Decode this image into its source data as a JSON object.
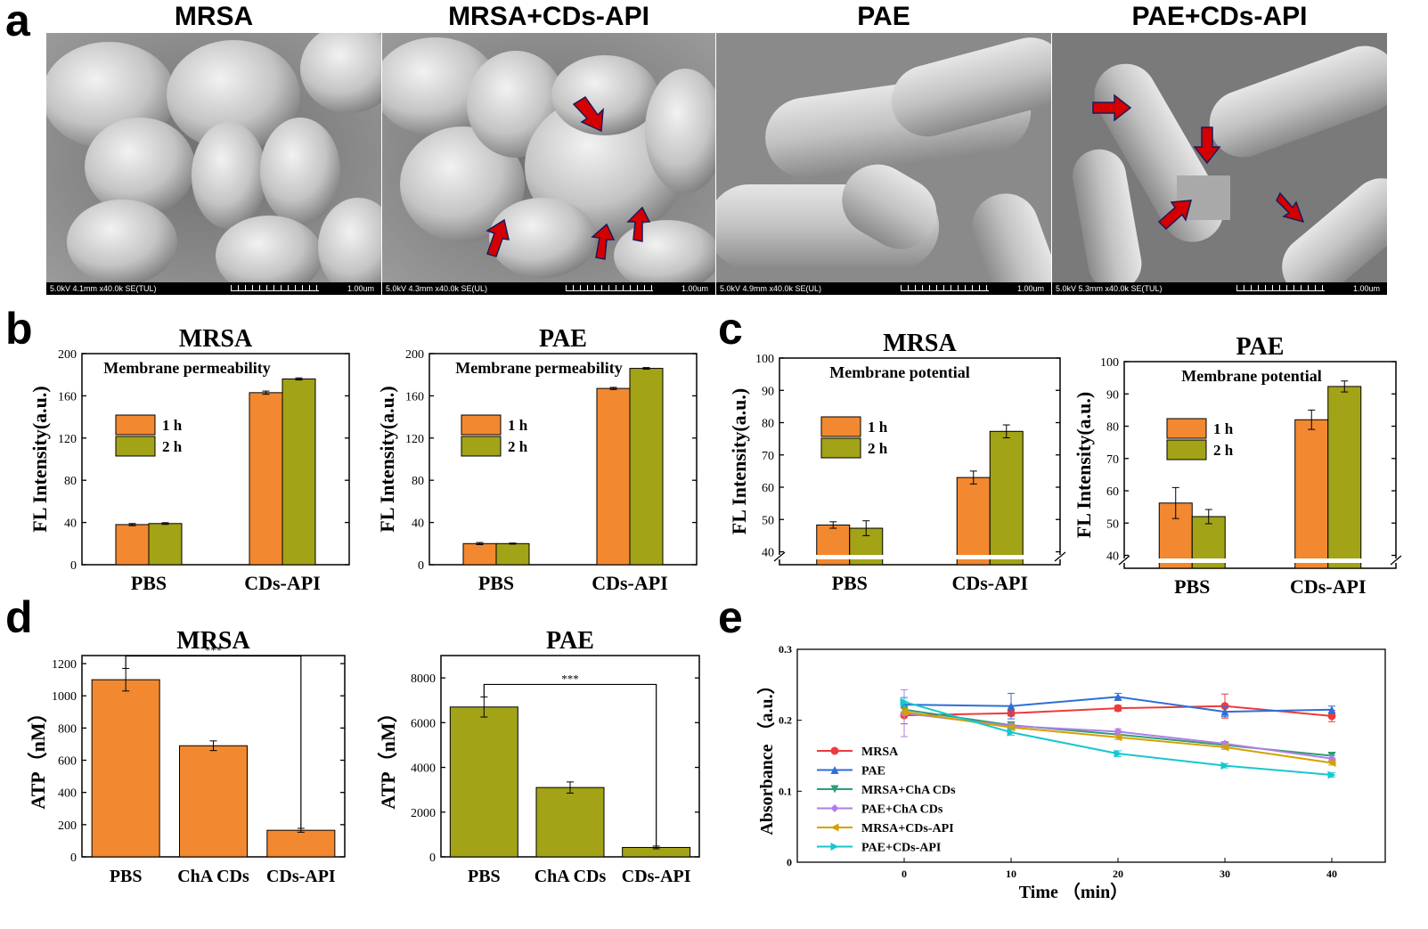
{
  "panel_letters": {
    "a": "a",
    "b": "b",
    "c": "c",
    "d": "d",
    "e": "e"
  },
  "colors": {
    "orange": "#f28830",
    "olive": "#a2a316",
    "red_arrow": "#d40000"
  },
  "sem": [
    {
      "title": "MRSA",
      "info": "5.0kV 4.1mm x40.0k SE(TUL)",
      "scale": "1.00um",
      "content": "cocci"
    },
    {
      "title": "MRSA+CDs-API",
      "info": "5.0kV 4.3mm x40.0k SE(UL)",
      "scale": "1.00um",
      "content": "cocci-damaged"
    },
    {
      "title": "PAE",
      "info": "5.0kV 4.9mm x40.0k SE(UL)",
      "scale": "1.00um",
      "content": "rods"
    },
    {
      "title": "PAE+CDs-API",
      "info": "5.0kV 5.3mm x40.0k SE(TUL)",
      "scale": "1.00um",
      "content": "rods-damaged"
    }
  ],
  "chart_data": [
    {
      "id": "b1",
      "type": "bar",
      "title": "MRSA",
      "annotation": "Membrane permeability",
      "ylabel": "FL Intensity(a.u.)",
      "categories": [
        "PBS",
        "CDs-API"
      ],
      "ylim": [
        0,
        200
      ],
      "yticks": [
        0,
        40,
        80,
        120,
        160,
        200
      ],
      "series": [
        {
          "name": "1 h",
          "color": "#f28830",
          "values": [
            38,
            163
          ],
          "errors": [
            1,
            1.5
          ]
        },
        {
          "name": "2 h",
          "color": "#a2a316",
          "values": [
            39,
            176
          ],
          "errors": [
            0.8,
            1
          ]
        }
      ]
    },
    {
      "id": "b2",
      "type": "bar",
      "title": "PAE",
      "annotation": "Membrane permeability",
      "ylabel": "FL Intensity(a.u.)",
      "categories": [
        "PBS",
        "CDs-API"
      ],
      "ylim": [
        0,
        200
      ],
      "yticks": [
        0,
        40,
        80,
        120,
        160,
        200
      ],
      "series": [
        {
          "name": "1 h",
          "color": "#f28830",
          "values": [
            20,
            167
          ],
          "errors": [
            1,
            1
          ]
        },
        {
          "name": "2 h",
          "color": "#a2a316",
          "values": [
            20,
            186
          ],
          "errors": [
            0.5,
            0.8
          ]
        }
      ]
    },
    {
      "id": "c1",
      "type": "bar",
      "title": "MRSA",
      "annotation": "Membrane potential",
      "ylabel": "FL Intensity(a.u.)",
      "categories": [
        "PBS",
        "CDs-API"
      ],
      "ylim": [
        36,
        100
      ],
      "yticks": [
        40,
        50,
        60,
        70,
        80,
        90,
        100
      ],
      "axis_break": true,
      "series": [
        {
          "name": "1 h",
          "color": "#f28830",
          "values": [
            48.3,
            63
          ],
          "errors": [
            1,
            2
          ]
        },
        {
          "name": "2 h",
          "color": "#a2a316",
          "values": [
            47.3,
            77.3
          ],
          "errors": [
            2.3,
            2
          ]
        }
      ]
    },
    {
      "id": "c2",
      "type": "bar",
      "title": "PAE",
      "annotation": "Membrane potential",
      "ylabel": "FL Intensity(a.u.)",
      "categories": [
        "PBS",
        "CDs-API"
      ],
      "ylim": [
        36,
        100
      ],
      "yticks": [
        40,
        50,
        60,
        70,
        80,
        90,
        100
      ],
      "axis_break": true,
      "series": [
        {
          "name": "1 h",
          "color": "#f28830",
          "values": [
            56.2,
            82
          ],
          "errors": [
            4.8,
            3
          ]
        },
        {
          "name": "2 h",
          "color": "#a2a316",
          "values": [
            52,
            92.3
          ],
          "errors": [
            2.2,
            1.7
          ]
        }
      ]
    },
    {
      "id": "d1",
      "type": "bar",
      "title": "MRSA",
      "ylabel": "ATP（nM）",
      "categories": [
        "PBS",
        "ChA CDs",
        "CDs-API"
      ],
      "ylim": [
        0,
        1250
      ],
      "yticks": [
        0,
        200,
        400,
        600,
        800,
        1000,
        1200
      ],
      "significance": "***",
      "series": [
        {
          "color": "#f28830",
          "values": [
            1100,
            690,
            165
          ],
          "errors": [
            70,
            30,
            12
          ]
        }
      ]
    },
    {
      "id": "d2",
      "type": "bar",
      "title": "PAE",
      "ylabel": "ATP（nM）",
      "categories": [
        "PBS",
        "ChA CDs",
        "CDs-API"
      ],
      "ylim": [
        0,
        9000
      ],
      "yticks": [
        0,
        2000,
        4000,
        6000,
        8000
      ],
      "significance": "***",
      "series": [
        {
          "color": "#a2a316",
          "values": [
            6700,
            3100,
            420
          ],
          "errors": [
            450,
            250,
            60
          ]
        }
      ]
    },
    {
      "id": "e",
      "type": "line",
      "ylabel": "Absorbance （a.u.）",
      "xlabel": "Time （min）",
      "x": [
        0,
        10,
        20,
        30,
        40
      ],
      "xlim": [
        -10,
        45
      ],
      "xticks": [
        0,
        10,
        20,
        30,
        40
      ],
      "ylim": [
        0,
        0.3
      ],
      "yticks": [
        0.0,
        0.1,
        0.2,
        0.3
      ],
      "series": [
        {
          "name": "MRSA",
          "color": "#ee3a3a",
          "marker": "circle",
          "values": [
            0.207,
            0.21,
            0.217,
            0.22,
            0.206
          ],
          "errors": [
            0.012,
            0.004,
            0.004,
            0.017,
            0.008
          ]
        },
        {
          "name": "PAE",
          "color": "#2e6fd6",
          "marker": "triangle-up",
          "values": [
            0.222,
            0.22,
            0.233,
            0.212,
            0.215
          ],
          "errors": [
            0.01,
            0.018,
            0.005,
            0.007,
            0.005
          ]
        },
        {
          "name": "MRSA+ChA CDs",
          "color": "#2e9e74",
          "marker": "triangle-down",
          "values": [
            0.215,
            0.193,
            0.18,
            0.165,
            0.15
          ],
          "errors": [
            0.005,
            0.004,
            0.003,
            0.004,
            0.004
          ]
        },
        {
          "name": "PAE+ChA CDs",
          "color": "#b07ee8",
          "marker": "diamond",
          "values": [
            0.21,
            0.192,
            0.184,
            0.167,
            0.146
          ],
          "errors": [
            0.033,
            0.004,
            0.004,
            0.003,
            0.004
          ]
        },
        {
          "name": "MRSA+CDs-API",
          "color": "#d6a000",
          "marker": "triangle-left",
          "values": [
            0.212,
            0.19,
            0.176,
            0.162,
            0.14
          ],
          "errors": [
            0.005,
            0.003,
            0.003,
            0.003,
            0.003
          ]
        },
        {
          "name": "PAE+CDs-API",
          "color": "#16c7cf",
          "marker": "triangle-right",
          "values": [
            0.226,
            0.183,
            0.153,
            0.136,
            0.123
          ],
          "errors": [
            0.006,
            0.004,
            0.004,
            0.003,
            0.003
          ]
        }
      ]
    }
  ]
}
